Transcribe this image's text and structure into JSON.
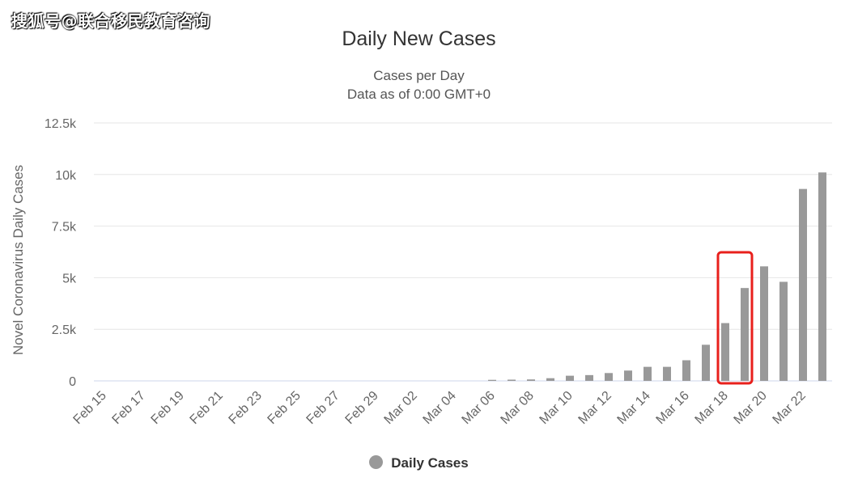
{
  "watermark": "搜狐号@联合移民教育咨询",
  "chart_data": {
    "type": "bar",
    "title": "Daily New Cases",
    "subtitle": [
      "Cases per Day",
      "Data as of 0:00 GMT+0"
    ],
    "ylabel": "Novel Coronavirus Daily Cases",
    "xlabel": "",
    "ylim": [
      0,
      12500
    ],
    "yticks": [
      0,
      2500,
      5000,
      7500,
      10000,
      12500
    ],
    "ytick_labels": [
      "0",
      "2.5k",
      "5k",
      "7.5k",
      "10k",
      "12.5k"
    ],
    "categories": [
      "Feb 15",
      "Feb 16",
      "Feb 17",
      "Feb 18",
      "Feb 19",
      "Feb 20",
      "Feb 21",
      "Feb 22",
      "Feb 23",
      "Feb 24",
      "Feb 25",
      "Feb 26",
      "Feb 27",
      "Feb 28",
      "Feb 29",
      "Mar 01",
      "Mar 02",
      "Mar 03",
      "Mar 04",
      "Mar 05",
      "Mar 06",
      "Mar 07",
      "Mar 08",
      "Mar 09",
      "Mar 10",
      "Mar 11",
      "Mar 12",
      "Mar 13",
      "Mar 14",
      "Mar 15",
      "Mar 16",
      "Mar 17",
      "Mar 18",
      "Mar 19",
      "Mar 20",
      "Mar 21",
      "Mar 22",
      "Mar 23"
    ],
    "xtick_labels": [
      "Feb 15",
      "Feb 17",
      "Feb 19",
      "Feb 21",
      "Feb 23",
      "Feb 25",
      "Feb 27",
      "Feb 29",
      "Mar 02",
      "Mar 04",
      "Mar 06",
      "Mar 08",
      "Mar 10",
      "Mar 12",
      "Mar 14",
      "Mar 16",
      "Mar 18",
      "Mar 20",
      "Mar 22"
    ],
    "series": [
      {
        "name": "Daily Cases",
        "color": "#999999",
        "values": [
          0,
          0,
          0,
          0,
          0,
          0,
          0,
          0,
          0,
          0,
          0,
          0,
          0,
          0,
          0,
          0,
          0,
          0,
          0,
          0,
          50,
          60,
          70,
          130,
          250,
          280,
          380,
          500,
          680,
          680,
          1000,
          1750,
          2800,
          4500,
          5550,
          4800,
          9300,
          10100
        ]
      }
    ],
    "highlight": {
      "categories": [
        "Mar 18",
        "Mar 19"
      ],
      "color": "#e8201c"
    },
    "grid": true,
    "legend": "bottom-center"
  }
}
